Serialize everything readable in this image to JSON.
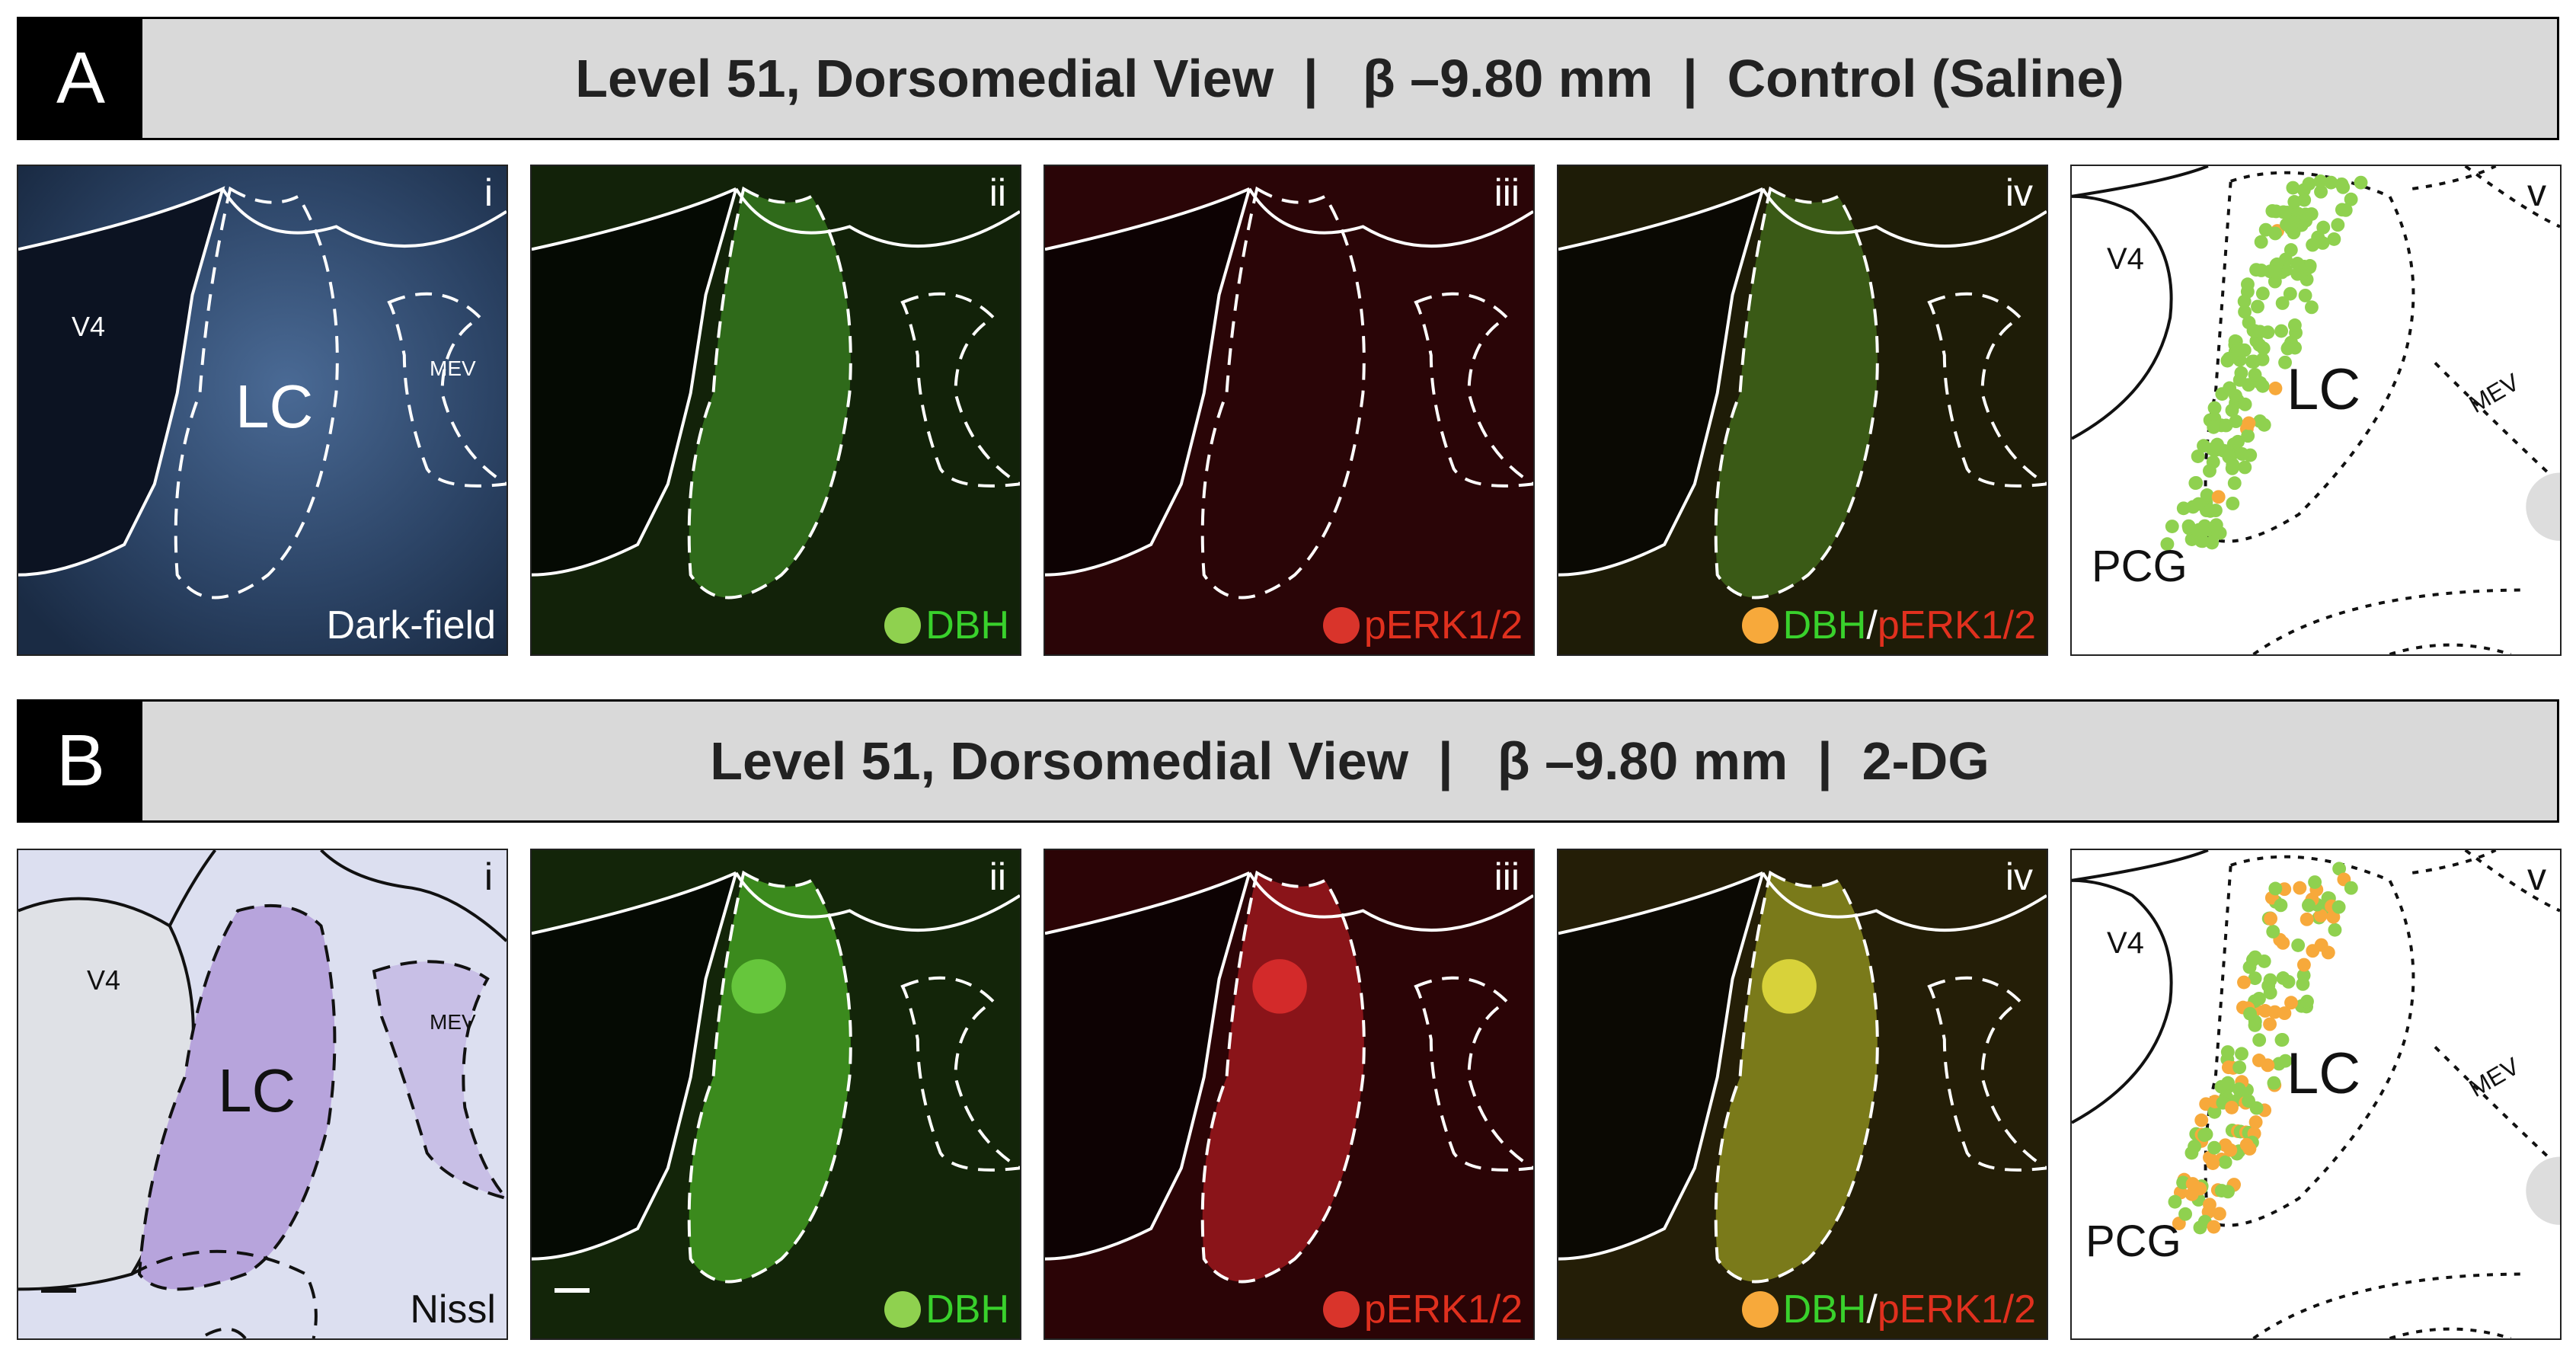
{
  "rows": [
    {
      "letter": "A",
      "title": "Level 51, Dorsomedial View  |   β –9.80 mm  |  Control (Saline)",
      "panels": {
        "i": {
          "num": "i",
          "label": "Dark-field",
          "regions": {
            "v4": "V4",
            "lc": "LC",
            "mev": "MEV"
          }
        },
        "ii": {
          "num": "ii",
          "label": "DBH"
        },
        "iii": {
          "num": "iii",
          "label": "pERK1/2"
        },
        "iv": {
          "num": "iv",
          "label_a": "DBH",
          "slash": "/",
          "label_b": "pERK1/2"
        },
        "v": {
          "num": "v",
          "regions": {
            "v4": "V4",
            "lc": "LC",
            "mev": "MEV",
            "pcg": "PCG"
          }
        }
      }
    },
    {
      "letter": "B",
      "title": "Level 51, Dorsomedial View  |   β –9.80 mm  |  2-DG",
      "panels": {
        "i": {
          "num": "i",
          "label": "Nissl",
          "regions": {
            "v4": "V4",
            "lc": "LC",
            "mev": "MEV"
          }
        },
        "ii": {
          "num": "ii",
          "label": "DBH"
        },
        "iii": {
          "num": "iii",
          "label": "pERK1/2"
        },
        "iv": {
          "num": "iv",
          "label_a": "DBH",
          "slash": "/",
          "label_b": "pERK1/2"
        },
        "v": {
          "num": "v",
          "regions": {
            "v4": "V4",
            "lc": "LC",
            "mev": "MEV",
            "pcg": "PCG"
          }
        }
      }
    }
  ],
  "colors": {
    "dbh_marker": "#8fd14f",
    "perk_marker": "#d9342b",
    "merge_marker": "#f7a93b",
    "banner_bg": "#d9d9d9"
  }
}
